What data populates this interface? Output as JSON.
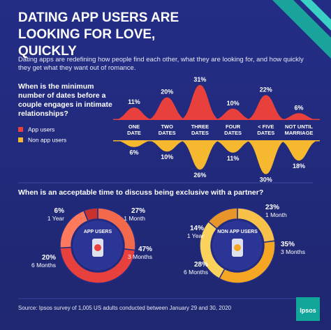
{
  "header": {
    "title": "DATING APP USERS ARE LOOKING FOR LOVE, QUICKLY",
    "intro": "Dating apps are redefining how people find each other, what they are looking for, and how quickly they get what they want out of romance."
  },
  "chart_data": [
    {
      "type": "wave",
      "title": "When is the minimum number of dates before a couple engages in intimate relationships?",
      "categories": [
        "ONE DATE",
        "TWO DATES",
        "THREE DATES",
        "FOUR DATES",
        "< FIVE DATES",
        "NOT UNTIL MARRIAGE"
      ],
      "series": [
        {
          "name": "App users",
          "color": "#e8403c",
          "values": [
            11,
            20,
            31,
            10,
            22,
            6
          ],
          "value_labels": [
            "11%",
            "20%",
            "31%",
            "10%",
            "22%",
            "6%"
          ]
        },
        {
          "name": "Non app users",
          "color": "#f5b82e",
          "values": [
            6,
            10,
            26,
            11,
            30,
            18
          ],
          "value_labels": [
            "6%",
            "10%",
            "26%",
            "11%",
            "30%",
            "18%"
          ]
        }
      ]
    },
    {
      "type": "donut",
      "title": "When is an acceptable time to discuss being exclusive with a partner?",
      "center_label": "APP USERS",
      "categories": [
        "1 Month",
        "3 Months",
        "6 Months",
        "1 Year"
      ],
      "values": [
        27,
        47,
        20,
        6
      ],
      "value_labels": [
        "27%",
        "47%",
        "20%",
        "6%"
      ],
      "colors": [
        "#f26a4b",
        "#e8403c",
        "#ff7a5c",
        "#c8322e"
      ]
    },
    {
      "type": "donut",
      "center_label": "NON APP USERS",
      "categories": [
        "1 Month",
        "3 Months",
        "6 Months",
        "1 Year"
      ],
      "values": [
        23,
        35,
        28,
        14
      ],
      "value_labels": [
        "23%",
        "35%",
        "28%",
        "14%"
      ],
      "colors": [
        "#f8c24a",
        "#f5a623",
        "#fbd35c",
        "#e8962a"
      ]
    }
  ],
  "footer": {
    "source": "Source: Ipsos survey of 1,005 US adults conducted between January 29 and 30, 2020",
    "logo": "Ipsos"
  }
}
